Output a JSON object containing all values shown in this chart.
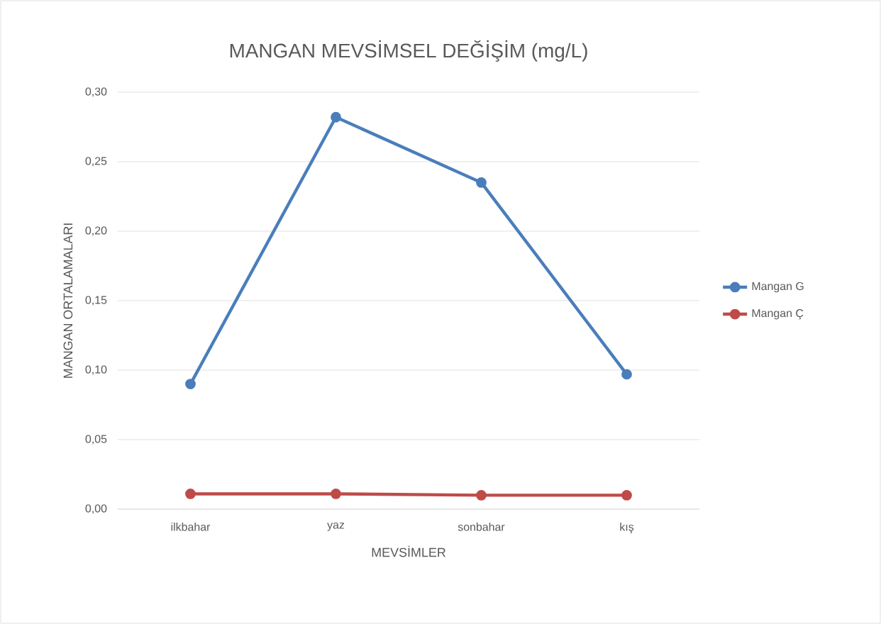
{
  "chart_data": {
    "type": "line",
    "title": "MANGAN MEVSİMSEL DEĞİŞİM (mg/L)",
    "xlabel": "MEVSİMLER",
    "ylabel": "MANGAN ORTALAMALARI",
    "categories": [
      "ilkbahar",
      "yaz",
      "sonbahar",
      "kış"
    ],
    "series": [
      {
        "name": "Mangan G",
        "color": "#4a7ebb",
        "values": [
          0.09,
          0.282,
          0.235,
          0.097
        ]
      },
      {
        "name": "Mangan Ç",
        "color": "#be4b48",
        "values": [
          0.011,
          0.011,
          0.01,
          0.01
        ]
      }
    ],
    "ylim": [
      0,
      0.3
    ],
    "yticks": [
      {
        "value": 0,
        "label": "0,00"
      },
      {
        "value": 0.05,
        "label": "0,05"
      },
      {
        "value": 0.1,
        "label": "0,10"
      },
      {
        "value": 0.15,
        "label": "0,15"
      },
      {
        "value": 0.2,
        "label": "0,20"
      },
      {
        "value": 0.25,
        "label": "0,25"
      },
      {
        "value": 0.3,
        "label": "0,30"
      }
    ],
    "grid": "y",
    "legend": "right",
    "marker": "circle",
    "line_style": "solid"
  }
}
